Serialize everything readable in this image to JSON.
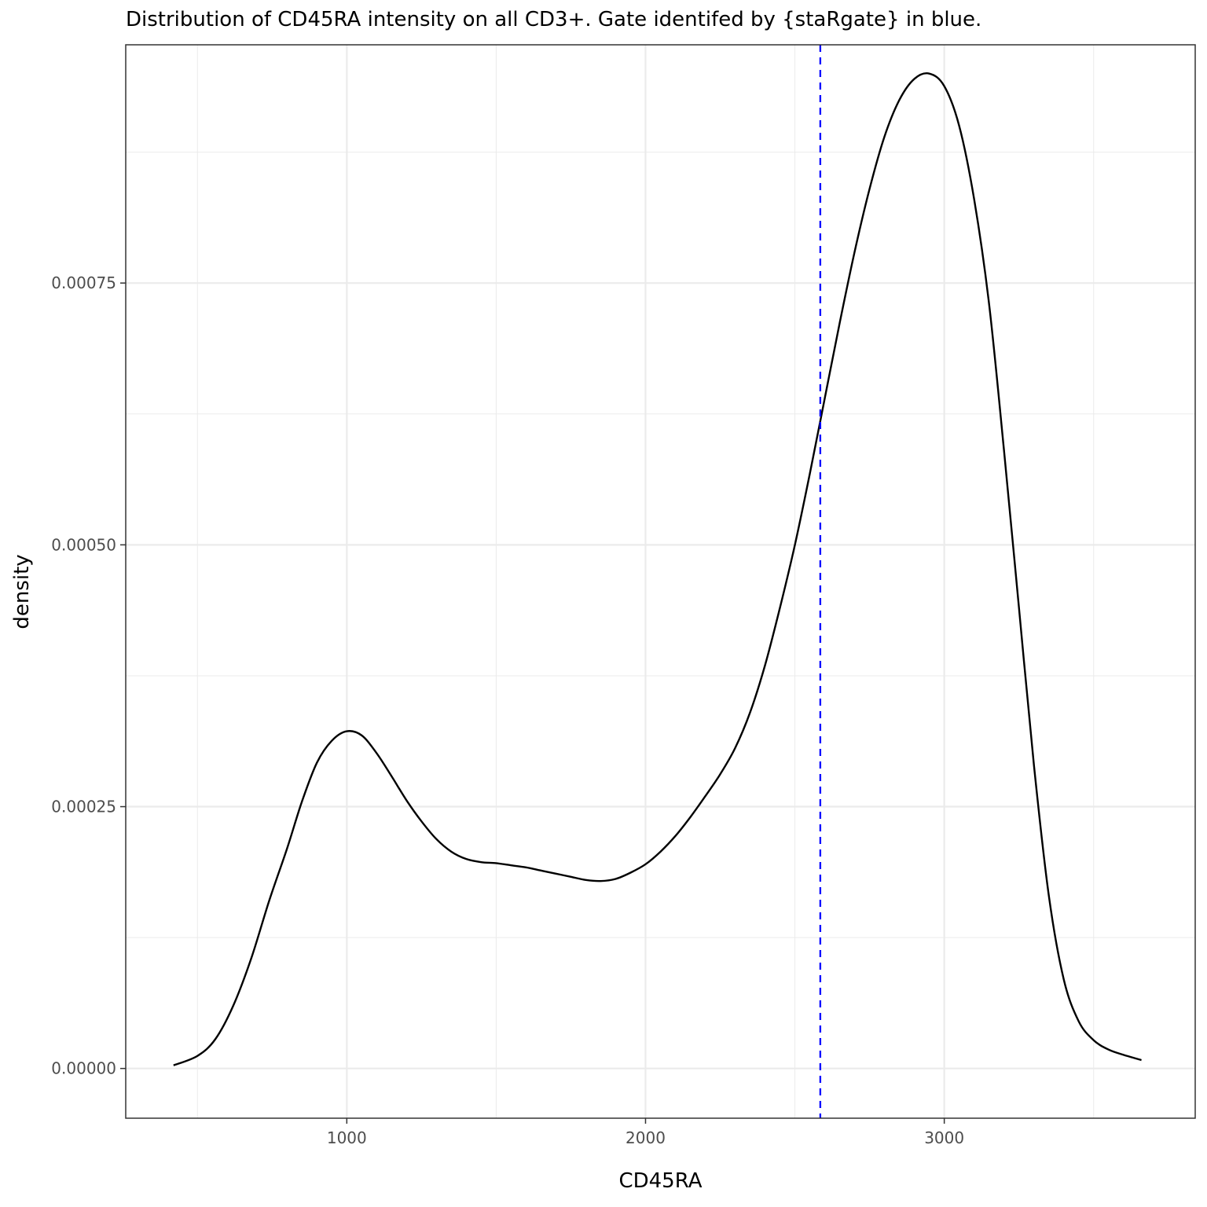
{
  "chart_data": {
    "type": "area",
    "title": "Distribution of CD45RA intensity on all CD3+. Gate identifed by {staRgate} in blue.",
    "xlabel": "CD45RA",
    "ylabel": "density",
    "xlim": [
      260,
      3840
    ],
    "ylim": [
      -4.75e-05,
      0.0009775
    ],
    "x_ticks": [
      1000,
      2000,
      3000
    ],
    "x_tick_labels": [
      "1000",
      "2000",
      "3000"
    ],
    "y_ticks": [
      0,
      0.00025,
      0.0005,
      0.00075
    ],
    "y_tick_labels": [
      "0.00000",
      "0.00025",
      "0.00050",
      "0.00075"
    ],
    "grid": true,
    "colors": {
      "curve": "#000000",
      "gate": "#0000ff",
      "grid": "#ebebeb"
    },
    "series": [
      {
        "x": [
          420,
          500,
          560,
          620,
          680,
          740,
          800,
          850,
          900,
          950,
          1000,
          1050,
          1100,
          1150,
          1200,
          1250,
          1300,
          1350,
          1400,
          1450,
          1500,
          1550,
          1600,
          1650,
          1700,
          1750,
          1800,
          1850,
          1900,
          1950,
          2000,
          2050,
          2100,
          2150,
          2200,
          2250,
          2300,
          2350,
          2400,
          2450,
          2500,
          2550,
          2600,
          2650,
          2700,
          2750,
          2800,
          2850,
          2900,
          2950,
          3000,
          3050,
          3100,
          3150,
          3200,
          3250,
          3300,
          3350,
          3400,
          3450,
          3500,
          3550,
          3600,
          3660
        ],
        "y": [
          3e-06,
          1.2e-05,
          2.8e-05,
          6e-05,
          0.000105,
          0.00016,
          0.00021,
          0.000255,
          0.000292,
          0.000313,
          0.000322,
          0.000318,
          0.000301,
          0.000279,
          0.000256,
          0.000236,
          0.000219,
          0.000207,
          0.0002,
          0.000197,
          0.000196,
          0.000194,
          0.000192,
          0.000189,
          0.000186,
          0.000183,
          0.00018,
          0.000179,
          0.000181,
          0.000187,
          0.000195,
          0.000207,
          0.000222,
          0.00024,
          0.00026,
          0.000281,
          0.000306,
          0.00034,
          0.000385,
          0.00044,
          0.0005,
          0.000568,
          0.00064,
          0.000712,
          0.00078,
          0.00084,
          0.00089,
          0.000925,
          0.000945,
          0.00095,
          0.000938,
          0.0009,
          0.00083,
          0.00073,
          0.00059,
          0.00044,
          0.00029,
          0.000165,
          8.5e-05,
          4.5e-05,
          2.7e-05,
          1.8e-05,
          1.3e-05,
          8e-06
        ]
      }
    ],
    "gate_x": 2585
  }
}
